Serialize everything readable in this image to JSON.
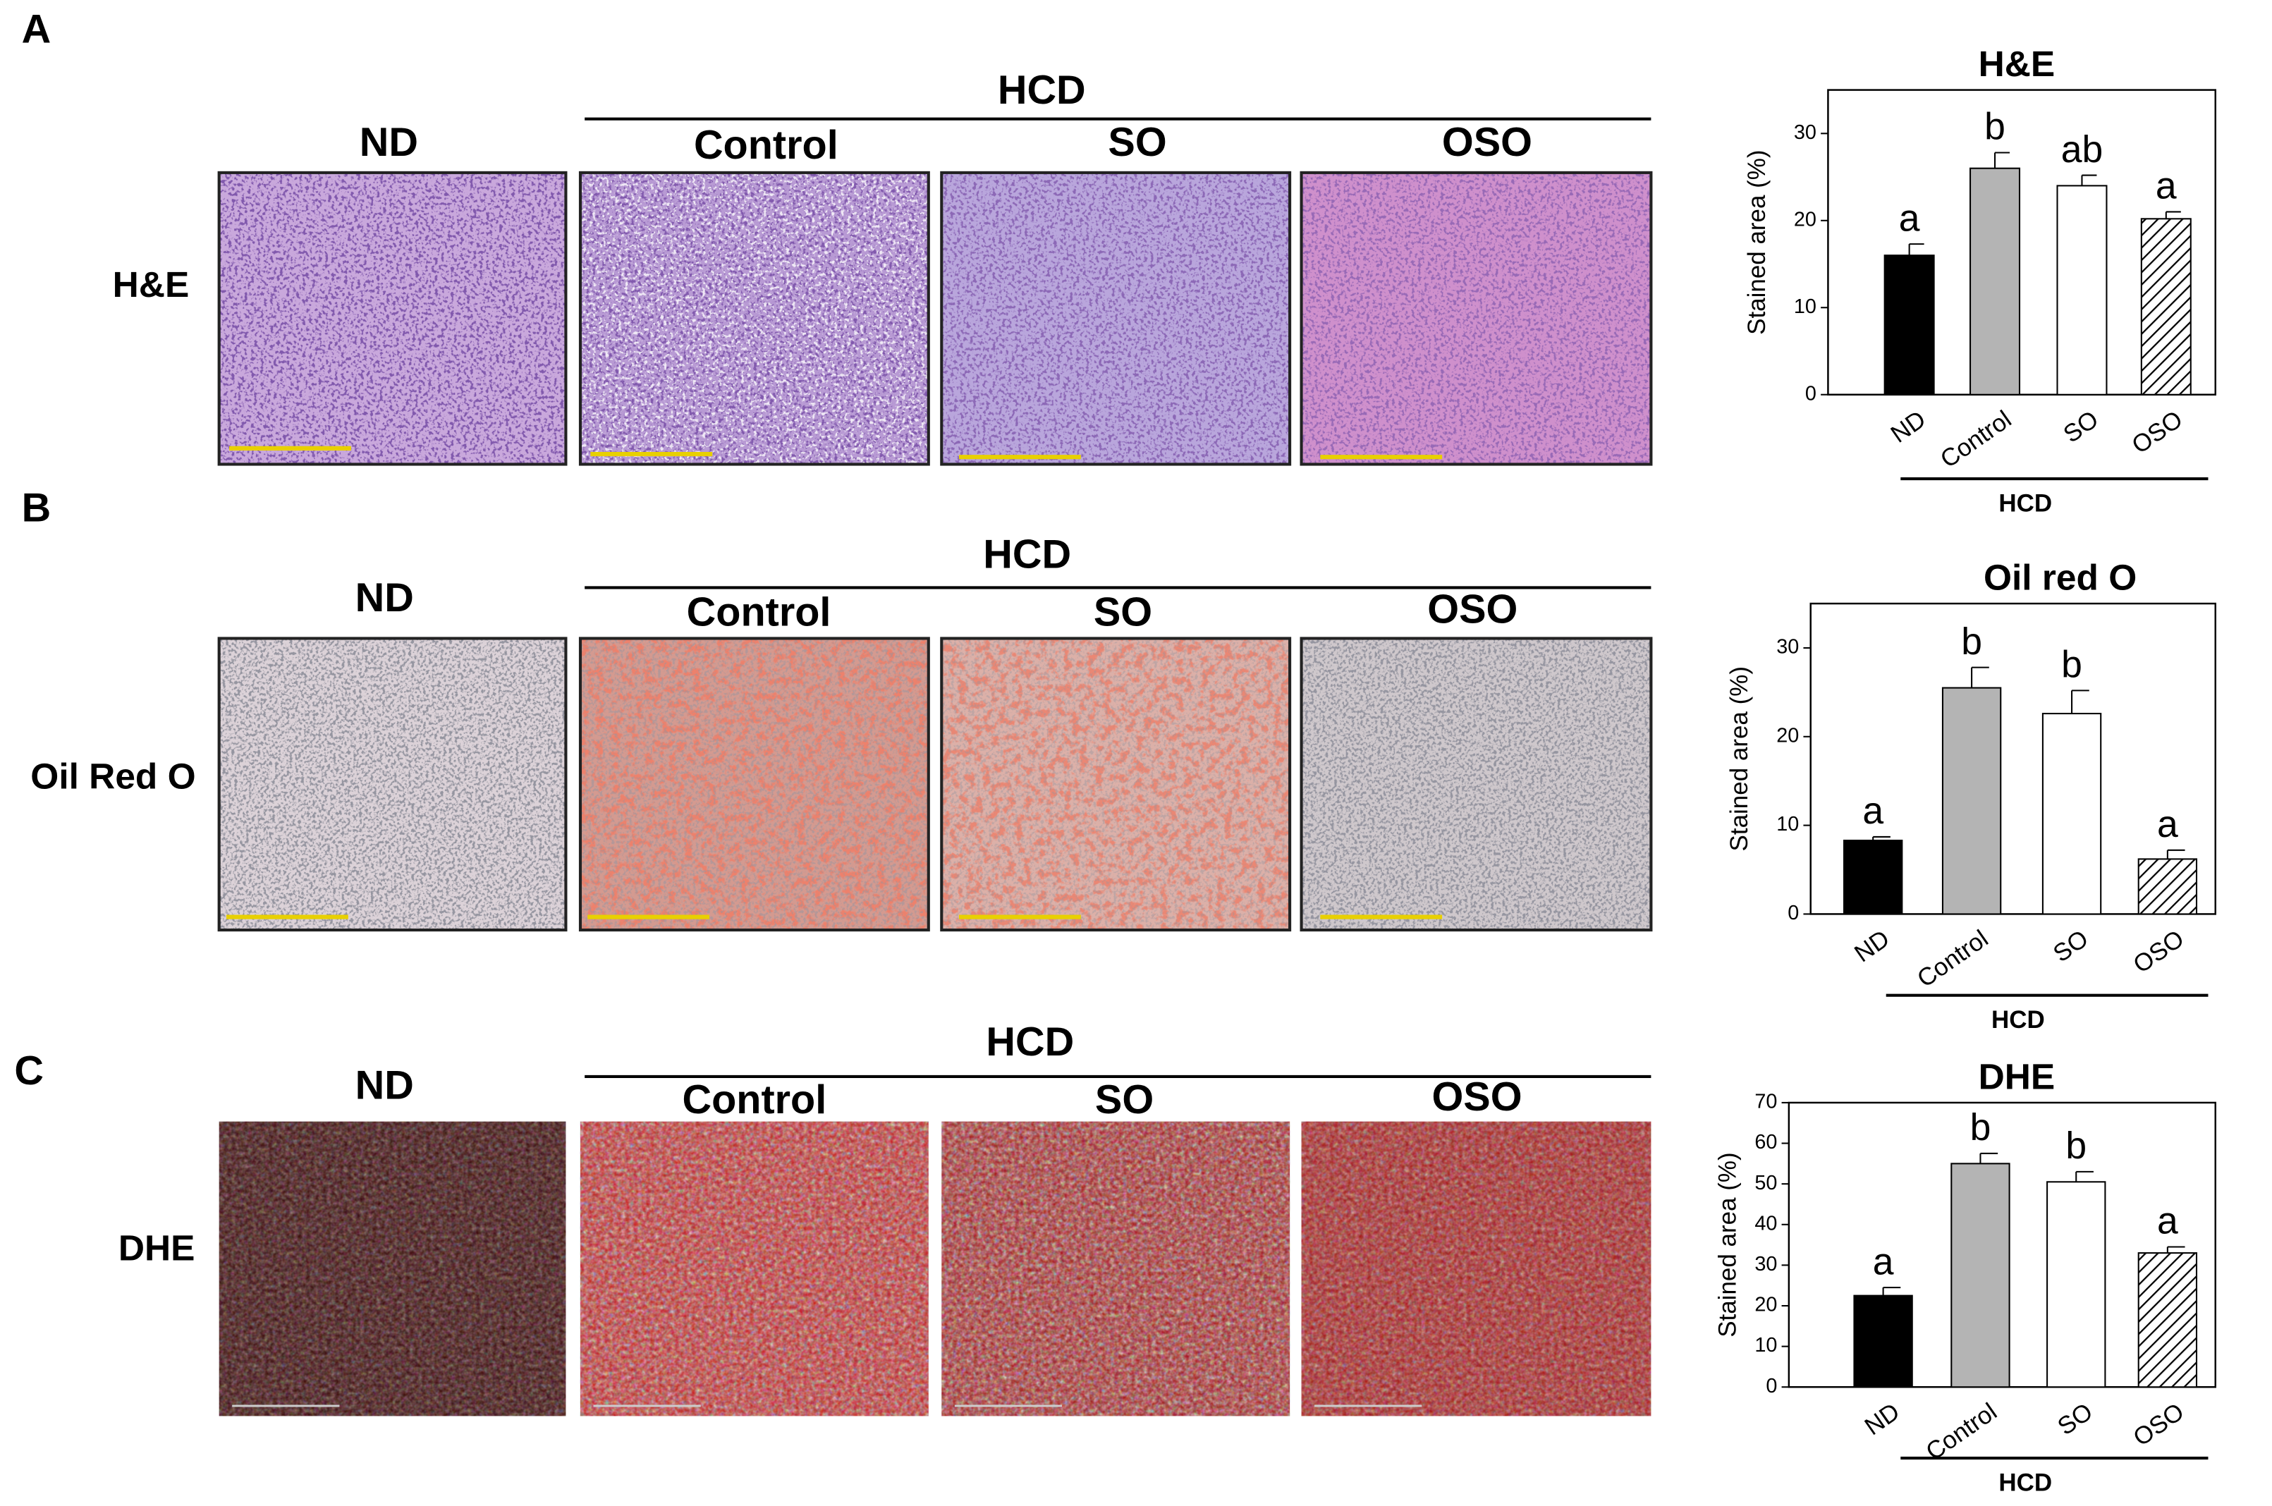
{
  "figure": {
    "panels": [
      {
        "letter": "A",
        "row_label": "H&E",
        "group_header": "HCD",
        "columns": [
          "ND",
          "Control",
          "SO",
          "OSO"
        ]
      },
      {
        "letter": "B",
        "row_label": "Oil Red O",
        "group_header": "HCD",
        "columns": [
          "ND",
          "Control",
          "SO",
          "OSO"
        ]
      },
      {
        "letter": "C",
        "row_label": "DHE",
        "group_header": "HCD",
        "columns": [
          "ND",
          "Control",
          "SO",
          "OSO"
        ]
      }
    ]
  },
  "chart_data": [
    {
      "type": "bar",
      "title": "H&E",
      "y_label": "Stained area (%)",
      "categories": [
        "ND",
        "Control",
        "SO",
        "OSO"
      ],
      "values": [
        16,
        26,
        24,
        20.2
      ],
      "errors": [
        1.3,
        1.8,
        1.2,
        0.8
      ],
      "annotations": [
        "a",
        "b",
        "ab",
        "a"
      ],
      "colors": [
        "#000000",
        "#b4b4b4",
        "#ffffff",
        "#ffffff"
      ],
      "hatch": [
        false,
        false,
        false,
        true
      ],
      "group_label": "HCD",
      "ylim": [
        0,
        35
      ],
      "yticks": [
        0,
        10,
        20,
        30
      ]
    },
    {
      "type": "bar",
      "title": "Oil red O",
      "y_label": "Stained area (%)",
      "categories": [
        "ND",
        "Control",
        "SO",
        "OSO"
      ],
      "values": [
        8.3,
        25.5,
        22.6,
        6.2
      ],
      "errors": [
        0.4,
        2.3,
        2.6,
        1
      ],
      "annotations": [
        "a",
        "b",
        "b",
        "a"
      ],
      "colors": [
        "#000000",
        "#b4b4b4",
        "#ffffff",
        "#ffffff"
      ],
      "hatch": [
        false,
        false,
        false,
        true
      ],
      "group_label": "HCD",
      "ylim": [
        0,
        35
      ],
      "yticks": [
        0,
        10,
        20,
        30
      ]
    },
    {
      "type": "bar",
      "title": "DHE",
      "y_label": "Stained area (%)",
      "categories": [
        "ND",
        "Control",
        "SO",
        "OSO"
      ],
      "values": [
        22.5,
        55,
        50.5,
        33
      ],
      "errors": [
        2,
        2.5,
        2.5,
        1.5
      ],
      "annotations": [
        "a",
        "b",
        "b",
        "a"
      ],
      "colors": [
        "#000000",
        "#b4b4b4",
        "#ffffff",
        "#ffffff"
      ],
      "hatch": [
        false,
        false,
        false,
        true
      ],
      "group_label": "HCD",
      "ylim": [
        0,
        70
      ],
      "yticks": [
        0,
        10,
        20,
        30,
        40,
        50,
        60,
        70
      ]
    }
  ]
}
